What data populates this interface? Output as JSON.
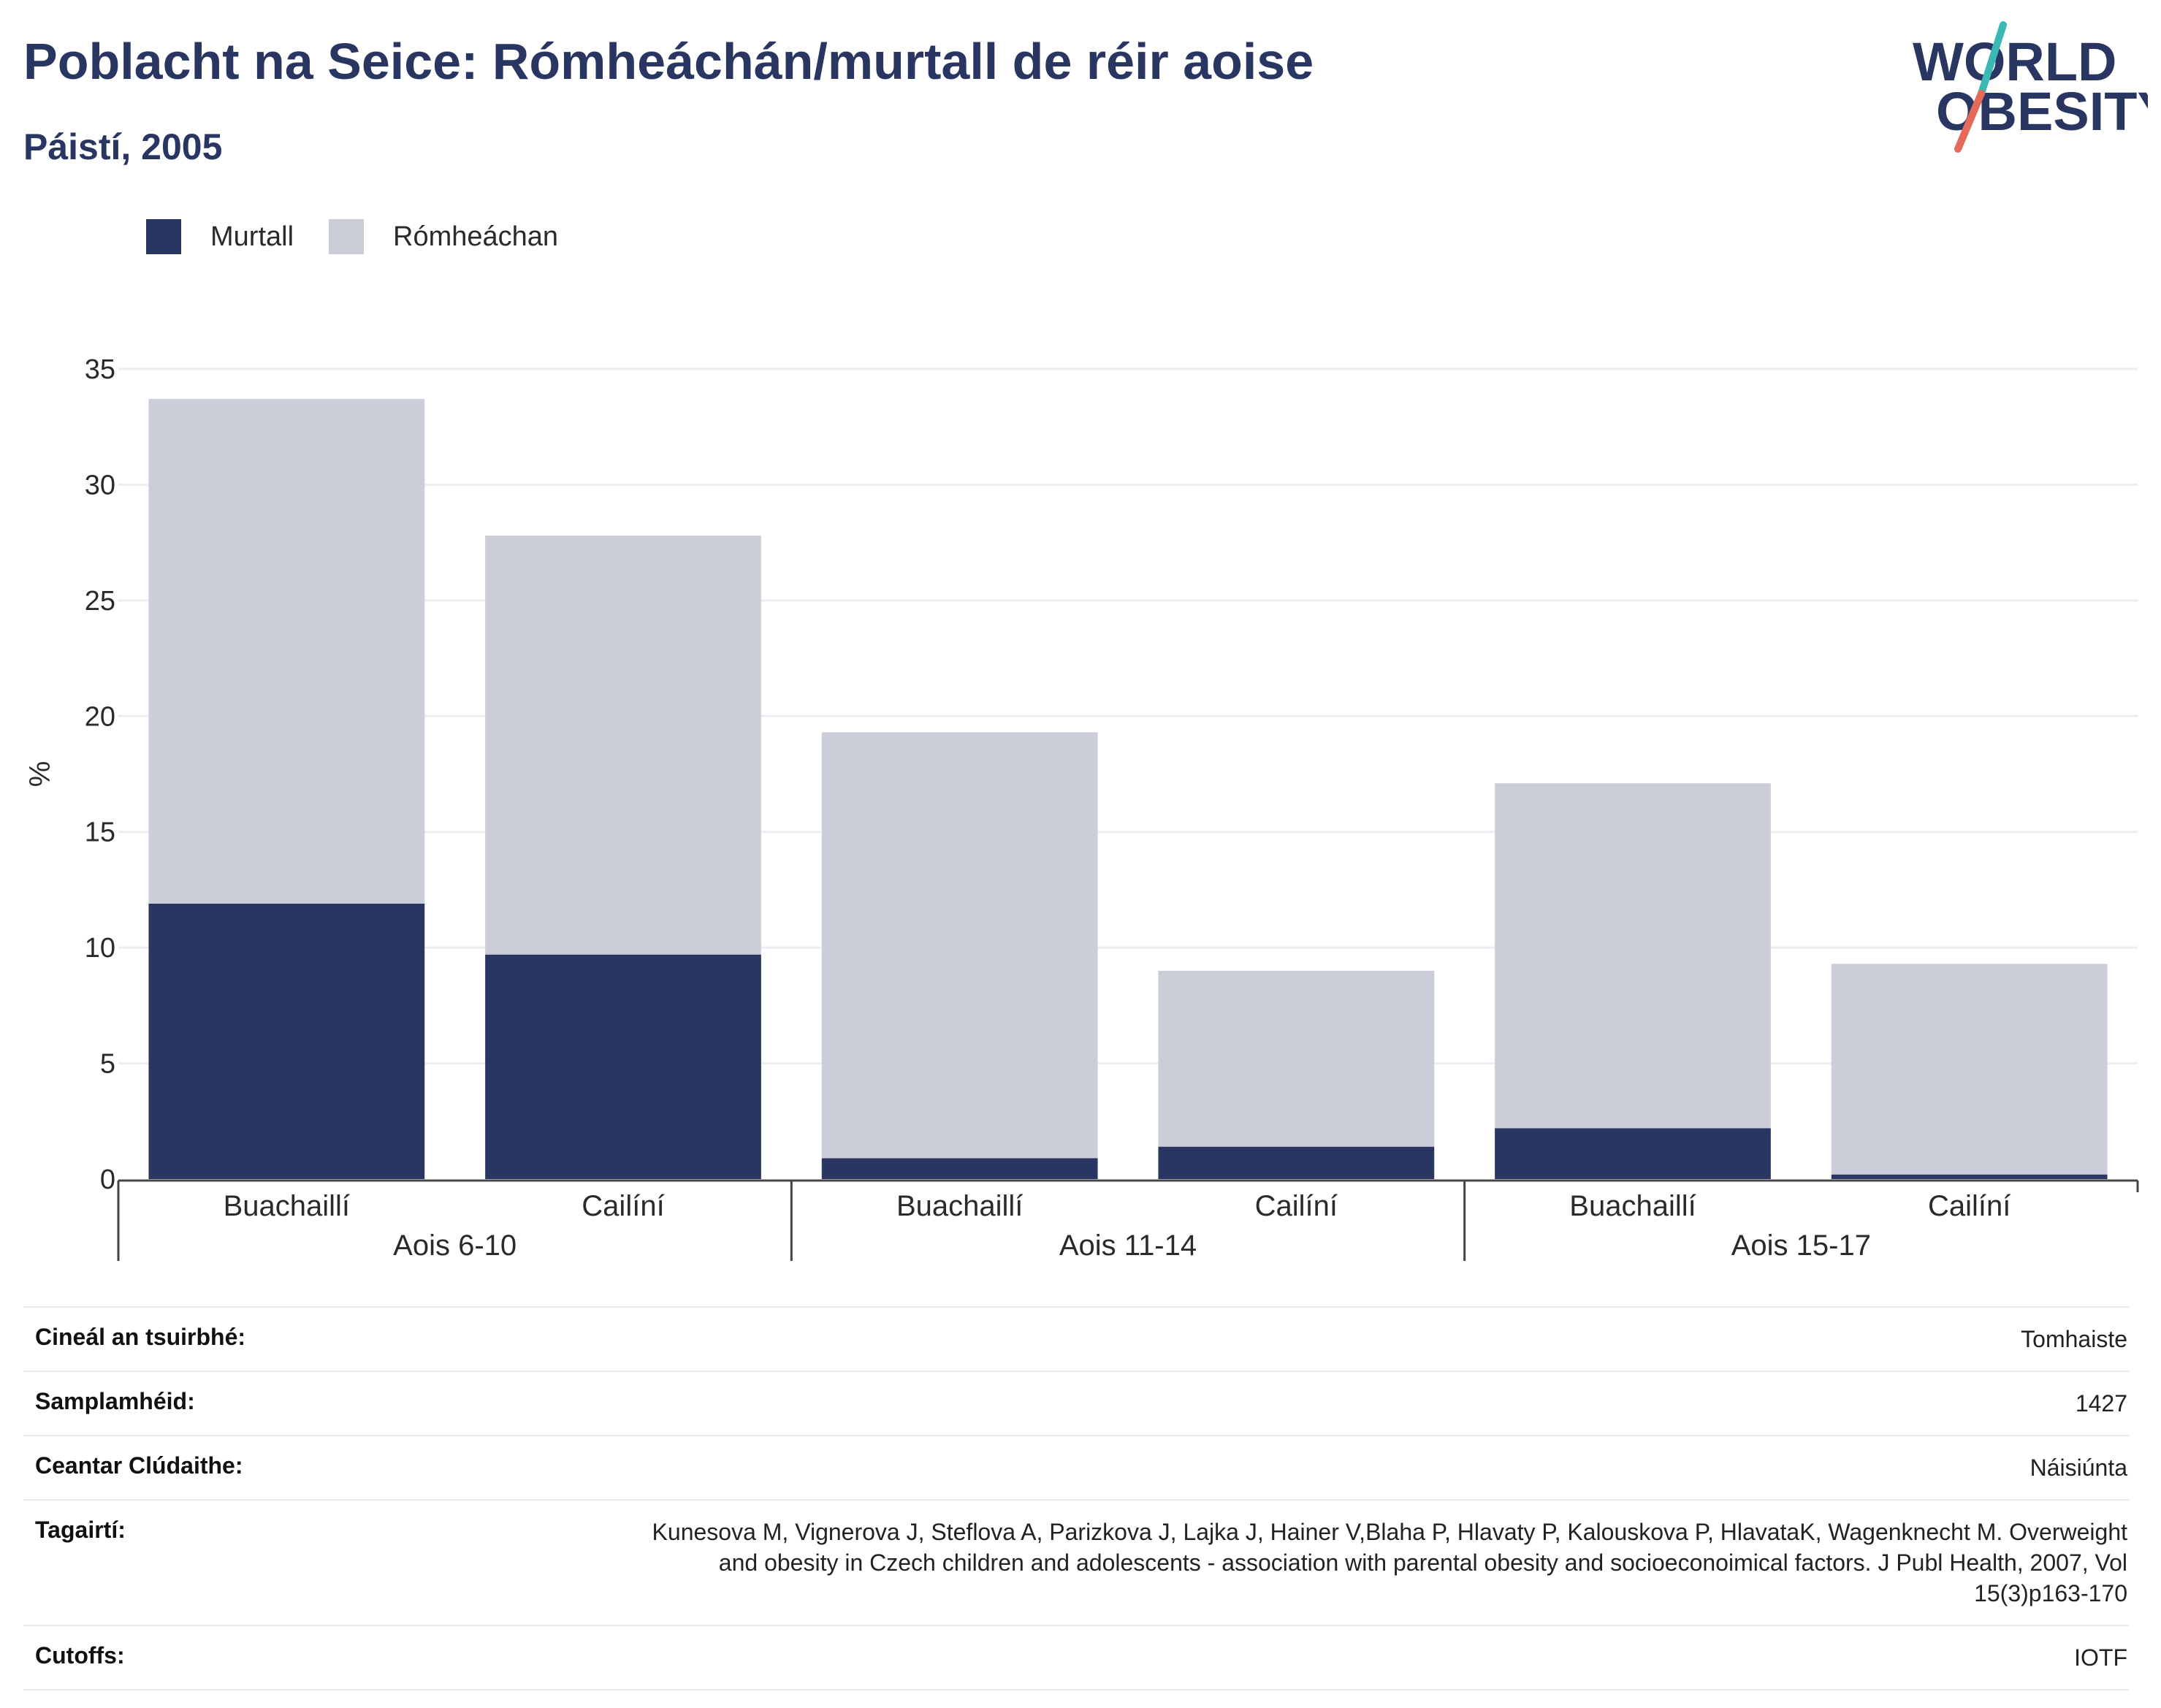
{
  "header": {
    "title": "Poblacht na Seice: Rómheáchán/murtall de réir aoise",
    "subtitle": "Páistí, 2005",
    "logo_line1": "WORLD",
    "logo_line2": "OBESITY"
  },
  "colors": {
    "murtall": "#2a3662",
    "romheachan": "#cbcdd9",
    "logo_teal": "#3bb8b4",
    "logo_coral": "#e56a5a"
  },
  "chart_data": {
    "type": "bar",
    "stacked": true,
    "ylabel": "%",
    "ylim": [
      0,
      35
    ],
    "yticks": [
      0,
      5,
      10,
      15,
      20,
      25,
      30,
      35
    ],
    "grid": true,
    "legend_position": "top-left",
    "groups": [
      {
        "label": "Aois 6-10",
        "categories": [
          "Buachaillí",
          "Cailíní"
        ]
      },
      {
        "label": "Aois 11-14",
        "categories": [
          "Buachaillí",
          "Cailíní"
        ]
      },
      {
        "label": "Aois 15-17",
        "categories": [
          "Buachaillí",
          "Cailíní"
        ]
      }
    ],
    "series": [
      {
        "name": "Murtall",
        "values": [
          11.9,
          9.7,
          0.9,
          1.4,
          2.2,
          0.2
        ]
      },
      {
        "name": "Rómheáchan",
        "values": [
          21.8,
          18.1,
          18.4,
          7.6,
          14.9,
          9.1
        ]
      }
    ]
  },
  "meta": [
    {
      "key": "Cineál an tsuirbhé:",
      "value": "Tomhaiste"
    },
    {
      "key": "Samplamhéid:",
      "value": "1427"
    },
    {
      "key": "Ceantar Clúdaithe:",
      "value": "Náisiúnta"
    },
    {
      "key": "Tagairtí:",
      "value": "Kunesova M, Vignerova J, Steflova A, Parizkova J, Lajka J, Hainer V,Blaha P, Hlavaty P, Kalouskova P, HlavataK, Wagenknecht M. Overweight and obesity in Czech children and adolescents - association with parental obesity and socioeconoimical factors. J Publ Health, 2007, Vol 15(3)p163-170"
    },
    {
      "key": "Cutoffs:",
      "value": "IOTF"
    }
  ]
}
